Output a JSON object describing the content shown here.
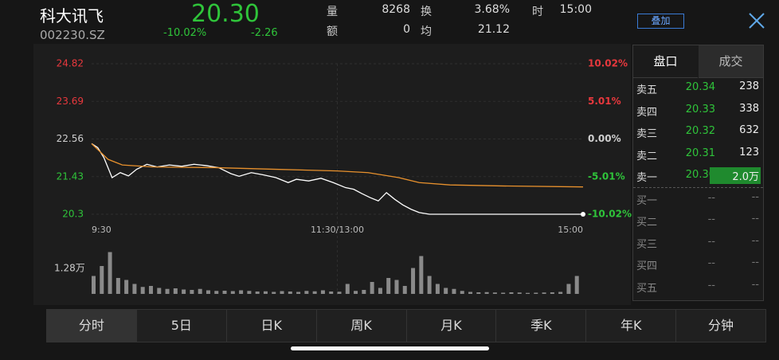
{
  "header": {
    "name": "科大讯飞",
    "code": "002230.SZ",
    "price": "20.30",
    "change_pct": "-10.02%",
    "change": "-2.26",
    "stats": [
      {
        "label": "量",
        "value": "8268"
      },
      {
        "label": "额",
        "value": "0"
      },
      {
        "label": "换",
        "value": "3.68%"
      },
      {
        "label": "均",
        "value": "21.12"
      },
      {
        "label": "时",
        "value": "15:00"
      }
    ],
    "overlay_button": "叠加"
  },
  "chart_data": [
    {
      "type": "line",
      "xlim": [
        0,
        240
      ],
      "xticks": [
        {
          "value": 0,
          "label": "9:30"
        },
        {
          "value": 120,
          "label": "11:30/13:00"
        },
        {
          "value": 240,
          "label": "15:00"
        }
      ],
      "ylim": [
        20.3,
        24.82
      ],
      "yticks": [
        24.82,
        23.69,
        22.56,
        21.43,
        20.3
      ],
      "ytick_colors": [
        "#e8383d",
        "#e8383d",
        "#cfcfcf",
        "#2fc43a",
        "#2fc43a"
      ],
      "y2lim": [
        -10.02,
        10.02
      ],
      "y2ticks": [
        {
          "value": 10.02,
          "label": "10.02%"
        },
        {
          "value": 5.01,
          "label": "5.01%"
        },
        {
          "value": 0,
          "label": "0.00%"
        },
        {
          "value": -5.01,
          "label": "-5.01%"
        },
        {
          "value": -10.02,
          "label": "-10.02%"
        }
      ],
      "grid": true,
      "series": [
        {
          "color": "#ffffff",
          "x": [
            0,
            3,
            6,
            10,
            14,
            18,
            22,
            27,
            32,
            38,
            44,
            50,
            56,
            62,
            68,
            72,
            78,
            84,
            90,
            96,
            100,
            106,
            112,
            118,
            124,
            128,
            132,
            136,
            140,
            144,
            148,
            152,
            156,
            160,
            165,
            180,
            200,
            220,
            240
          ],
          "values": [
            22.42,
            22.3,
            22.0,
            21.4,
            21.55,
            21.45,
            21.65,
            21.8,
            21.72,
            21.78,
            21.74,
            21.8,
            21.76,
            21.7,
            21.52,
            21.44,
            21.55,
            21.48,
            21.4,
            21.25,
            21.35,
            21.3,
            21.38,
            21.25,
            21.1,
            21.05,
            20.92,
            20.8,
            20.7,
            20.95,
            20.75,
            20.58,
            20.45,
            20.35,
            20.3,
            20.3,
            20.3,
            20.3,
            20.3
          ]
        },
        {
          "color": "#e8912d",
          "x": [
            0,
            8,
            15,
            30,
            60,
            90,
            120,
            135,
            150,
            160,
            175,
            200,
            240
          ],
          "values": [
            22.42,
            21.95,
            21.78,
            21.72,
            21.7,
            21.65,
            21.6,
            21.55,
            21.4,
            21.25,
            21.18,
            21.15,
            21.12
          ]
        }
      ]
    },
    {
      "type": "bar",
      "xlim": [
        0,
        240
      ],
      "ylim": [
        0,
        25600
      ],
      "yticks": [
        {
          "value": 12800,
          "label": "1.28万"
        }
      ],
      "color": "#8a8a8a",
      "x": [
        0,
        4,
        8,
        12,
        16,
        20,
        24,
        28,
        32,
        36,
        40,
        44,
        48,
        52,
        56,
        60,
        64,
        68,
        72,
        76,
        80,
        84,
        88,
        92,
        96,
        100,
        104,
        108,
        112,
        116,
        120,
        124,
        128,
        132,
        136,
        140,
        144,
        148,
        152,
        156,
        160,
        164,
        168,
        172,
        176,
        180,
        184,
        188,
        192,
        196,
        200,
        204,
        208,
        212,
        216,
        220,
        224,
        228,
        232,
        236
      ],
      "values": [
        9000,
        14000,
        21000,
        8000,
        7000,
        5000,
        3500,
        4000,
        3000,
        2500,
        2800,
        2200,
        2000,
        2500,
        1800,
        1500,
        1600,
        1400,
        1800,
        1500,
        1200,
        1300,
        1000,
        1400,
        1200,
        1000,
        1500,
        1300,
        1800,
        1200,
        1100,
        5000,
        1500,
        2000,
        6000,
        3000,
        8000,
        7000,
        4000,
        13000,
        19000,
        9000,
        5000,
        3000,
        2500,
        1500,
        1000,
        800,
        900,
        700,
        600,
        800,
        700,
        500,
        600,
        700,
        800,
        1000,
        5000,
        9000
      ]
    }
  ],
  "order_book": {
    "tabs": [
      "盘口",
      "成交"
    ],
    "sell": [
      {
        "label": "卖五",
        "price": "20.34",
        "volume": "238"
      },
      {
        "label": "卖四",
        "price": "20.33",
        "volume": "338"
      },
      {
        "label": "卖三",
        "price": "20.32",
        "volume": "632"
      },
      {
        "label": "卖二",
        "price": "20.31",
        "volume": "123"
      },
      {
        "label": "卖一",
        "price": "20.30",
        "volume": "2.0万"
      }
    ],
    "buy": [
      {
        "label": "买一",
        "price": "--",
        "volume": "--"
      },
      {
        "label": "买二",
        "price": "--",
        "volume": "--"
      },
      {
        "label": "买三",
        "price": "--",
        "volume": "--"
      },
      {
        "label": "买四",
        "price": "--",
        "volume": "--"
      },
      {
        "label": "买五",
        "price": "--",
        "volume": "--"
      }
    ]
  },
  "tabs": [
    "分时",
    "5日",
    "日K",
    "周K",
    "月K",
    "季K",
    "年K",
    "分钟"
  ]
}
